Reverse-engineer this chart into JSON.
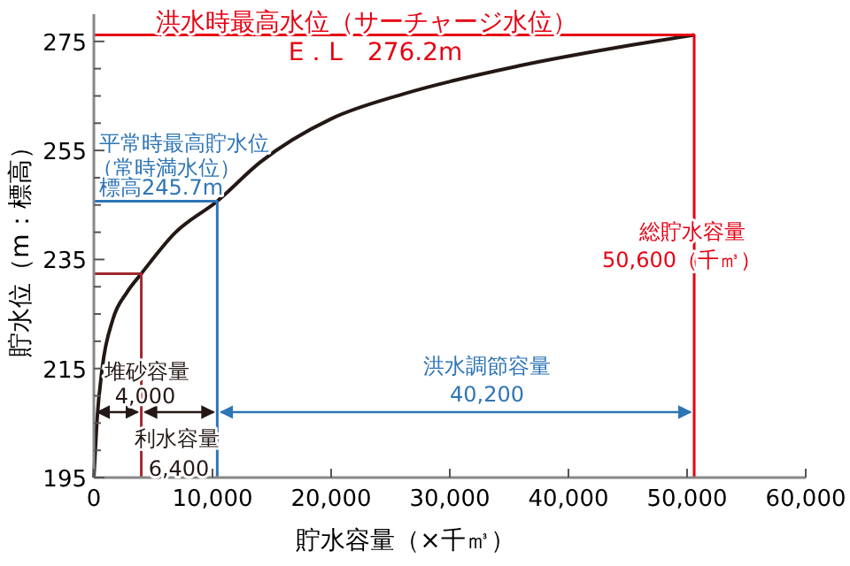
{
  "chart_data": {
    "type": "line",
    "xlabel": "貯水容量（×千㎥）",
    "ylabel": "貯水位（m：標高）",
    "xlim": [
      0,
      60000
    ],
    "xticks": [
      {
        "value": 0,
        "label": "0"
      },
      {
        "value": 10000,
        "label": "10,000"
      },
      {
        "value": 20000,
        "label": "20,000"
      },
      {
        "value": 30000,
        "label": "30,000"
      },
      {
        "value": 40000,
        "label": "40,000"
      },
      {
        "value": 50000,
        "label": "50,000"
      },
      {
        "value": 60000,
        "label": "60,000"
      }
    ],
    "ylim": [
      195,
      280
    ],
    "yticks": [
      195,
      {
        "value": 200,
        "label": null
      },
      {
        "value": 205,
        "label": null
      },
      {
        "value": 210,
        "label": null
      },
      215,
      {
        "value": 220,
        "label": null
      },
      {
        "value": 225,
        "label": null
      },
      {
        "value": 230,
        "label": null
      },
      235,
      {
        "value": 240,
        "label": null
      },
      {
        "value": 245,
        "label": null
      },
      {
        "value": 250,
        "label": null
      },
      255,
      {
        "value": 260,
        "label": null
      },
      {
        "value": 265,
        "label": null
      },
      {
        "value": 270,
        "label": null
      },
      275
    ],
    "grid": false,
    "marker": "none",
    "line_style": "solid",
    "series": [
      {
        "color": "#231815",
        "x": [
          0,
          250,
          700,
          1600,
          2800,
          4000,
          6800,
          10400,
          14000,
          20000,
          26000,
          35800,
          45500,
          50600
        ],
        "values": [
          195,
          205,
          215,
          224,
          229,
          232.4,
          239.8,
          245.7,
          252.8,
          260.8,
          265.3,
          270.5,
          274.4,
          276.2
        ]
      },
      {
        "color": "#e60012",
        "x": [
          0,
          50600,
          50600
        ],
        "values": [
          276.2,
          276.2,
          195
        ]
      },
      {
        "color": "#2e75b6",
        "x": [
          0,
          10400,
          10400
        ],
        "values": [
          245.7,
          245.7,
          195
        ]
      },
      {
        "color": "#a0282d",
        "x": [
          0,
          4000,
          4000
        ],
        "values": [
          232.4,
          232.4,
          195
        ]
      }
    ],
    "annotations": [
      "洪水時最高水位（サーチャージ水位）",
      "E．L　276.2m",
      "平常時最高貯水位",
      "（常時満水位）",
      "標高245.7m",
      "総貯水容量",
      "50,600（千㎥）",
      "洪水調節容量",
      "40,200",
      "堆砂容量",
      "4,000",
      "利水容量",
      "6,400"
    ]
  }
}
